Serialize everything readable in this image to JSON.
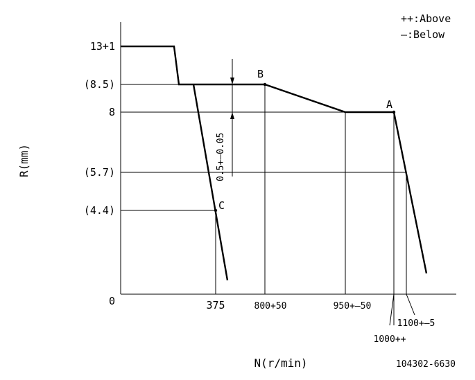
{
  "legend": {
    "above": "++:Above",
    "below": "—:Below"
  },
  "axes": {
    "y_title": "R(mm)",
    "x_title": "N(r/min)",
    "y_ticks": [
      "13+1",
      "(8.5)",
      "8",
      "(5.7)",
      "(4.4)",
      "0"
    ],
    "x_ticks": [
      "375",
      "800+50",
      "950+—50",
      "1100+—5",
      "1000++"
    ]
  },
  "points": {
    "a": "A",
    "b": "B",
    "c": "C"
  },
  "dimension_label": "0.5+—0.05",
  "drawing_number": "104302-6630"
}
